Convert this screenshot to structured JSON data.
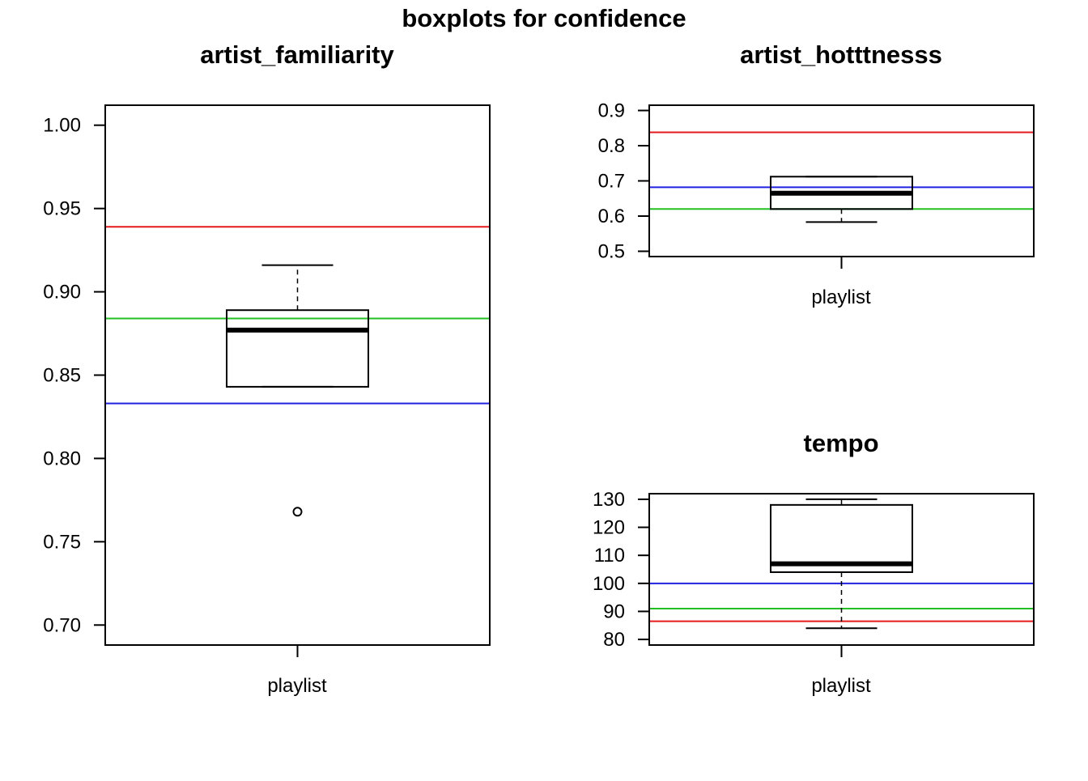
{
  "page_title": "boxplots for confidence",
  "chart_data": [
    {
      "type": "boxplot",
      "title": "artist_familiarity",
      "categories": [
        "playlist"
      ],
      "ylim": [
        0.688,
        1.012
      ],
      "yticks": [
        0.7,
        0.75,
        0.8,
        0.85,
        0.9,
        0.95,
        1.0
      ],
      "tick_decimals": 2,
      "box": {
        "whisker_low": 0.843,
        "q1": 0.843,
        "median": 0.877,
        "q3": 0.889,
        "whisker_high": 0.916
      },
      "outliers": [
        0.768
      ],
      "reference_lines": [
        {
          "value": 0.939,
          "color": "#e41a1c"
        },
        {
          "value": 0.884,
          "color": "#22c022"
        },
        {
          "value": 0.833,
          "color": "#2020e0"
        }
      ]
    },
    {
      "type": "boxplot",
      "title": "artist_hotttnesss",
      "categories": [
        "playlist"
      ],
      "ylim": [
        0.485,
        0.915
      ],
      "yticks": [
        0.5,
        0.6,
        0.7,
        0.8,
        0.9
      ],
      "tick_decimals": 1,
      "box": {
        "whisker_low": 0.583,
        "q1": 0.62,
        "median": 0.665,
        "q3": 0.712,
        "whisker_high": 0.712
      },
      "outliers": [],
      "reference_lines": [
        {
          "value": 0.838,
          "color": "#e41a1c"
        },
        {
          "value": 0.682,
          "color": "#2020e0"
        },
        {
          "value": 0.62,
          "color": "#22c022"
        }
      ]
    },
    {
      "type": "boxplot",
      "title": "tempo",
      "categories": [
        "playlist"
      ],
      "ylim": [
        78,
        132
      ],
      "yticks": [
        80,
        90,
        100,
        110,
        120,
        130
      ],
      "tick_decimals": 0,
      "box": {
        "whisker_low": 84,
        "q1": 104,
        "median": 107,
        "q3": 128,
        "whisker_high": 130
      },
      "outliers": [],
      "reference_lines": [
        {
          "value": 100,
          "color": "#2020e0"
        },
        {
          "value": 91,
          "color": "#22c022"
        },
        {
          "value": 86.5,
          "color": "#e41a1c"
        }
      ]
    }
  ]
}
